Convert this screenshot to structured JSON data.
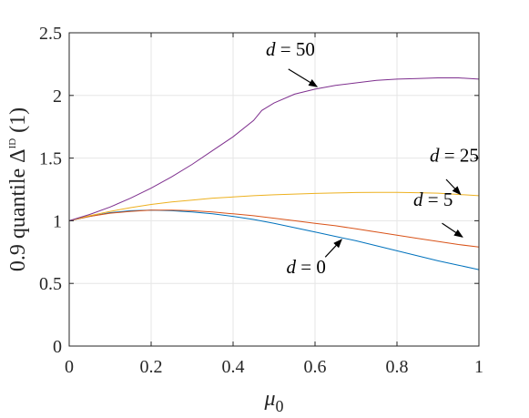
{
  "chart_data": {
    "type": "line",
    "xlabel": {
      "main": "μ",
      "sub": "0"
    },
    "ylabel": {
      "pre": "0.9 quantile ",
      "sym": "Δ",
      "sup": "ID",
      "post": " (1)"
    },
    "xlim": [
      0,
      1
    ],
    "ylim": [
      0,
      2.5
    ],
    "xticks": [
      0,
      0.2,
      0.4,
      0.6,
      0.8,
      1
    ],
    "xtick_labels": [
      "0",
      "0.2",
      "0.4",
      "0.6",
      "0.8",
      "1"
    ],
    "yticks": [
      0,
      0.5,
      1,
      1.5,
      2,
      2.5
    ],
    "ytick_labels": [
      "0",
      "0.5",
      "1",
      "1.5",
      "2",
      "2.5"
    ],
    "grid": true,
    "series": [
      {
        "label": "d = 0",
        "color": "#0072BD",
        "x": [
          0,
          0.05,
          0.1,
          0.15,
          0.2,
          0.25,
          0.3,
          0.35,
          0.4,
          0.45,
          0.5,
          0.55,
          0.6,
          0.65,
          0.7,
          0.75,
          0.8,
          0.85,
          0.9,
          0.95,
          1.0
        ],
        "y": [
          1.0,
          1.035,
          1.065,
          1.08,
          1.085,
          1.08,
          1.07,
          1.055,
          1.035,
          1.01,
          0.98,
          0.945,
          0.91,
          0.875,
          0.84,
          0.8,
          0.76,
          0.72,
          0.68,
          0.645,
          0.61
        ]
      },
      {
        "label": "d = 5",
        "color": "#D95319",
        "x": [
          0,
          0.05,
          0.1,
          0.15,
          0.2,
          0.25,
          0.3,
          0.35,
          0.4,
          0.45,
          0.5,
          0.55,
          0.6,
          0.65,
          0.7,
          0.75,
          0.8,
          0.85,
          0.9,
          0.95,
          1.0
        ],
        "y": [
          1.0,
          1.035,
          1.06,
          1.075,
          1.085,
          1.085,
          1.08,
          1.07,
          1.055,
          1.04,
          1.02,
          1.0,
          0.98,
          0.96,
          0.935,
          0.91,
          0.885,
          0.86,
          0.835,
          0.81,
          0.79
        ]
      },
      {
        "label": "d = 25",
        "color": "#EDB120",
        "x": [
          0,
          0.05,
          0.1,
          0.15,
          0.2,
          0.25,
          0.3,
          0.35,
          0.4,
          0.45,
          0.5,
          0.55,
          0.6,
          0.65,
          0.7,
          0.75,
          0.8,
          0.85,
          0.9,
          0.95,
          1.0
        ],
        "y": [
          1.0,
          1.04,
          1.075,
          1.105,
          1.13,
          1.15,
          1.165,
          1.18,
          1.19,
          1.2,
          1.207,
          1.213,
          1.218,
          1.222,
          1.225,
          1.226,
          1.226,
          1.224,
          1.22,
          1.21,
          1.2
        ]
      },
      {
        "label": "d = 50",
        "color": "#7E2F8E",
        "x": [
          0,
          0.05,
          0.1,
          0.15,
          0.2,
          0.25,
          0.3,
          0.35,
          0.4,
          0.45,
          0.47,
          0.48,
          0.5,
          0.55,
          0.6,
          0.65,
          0.7,
          0.75,
          0.8,
          0.85,
          0.9,
          0.95,
          1.0
        ],
        "y": [
          1.0,
          1.05,
          1.11,
          1.18,
          1.26,
          1.35,
          1.45,
          1.56,
          1.67,
          1.8,
          1.88,
          1.9,
          1.94,
          2.01,
          2.05,
          2.08,
          2.1,
          2.12,
          2.13,
          2.135,
          2.14,
          2.14,
          2.13
        ]
      }
    ],
    "annotations": [
      {
        "series": 3,
        "text": "d = 50",
        "text_at": [
          0.48,
          2.32
        ],
        "arrow_from": [
          0.535,
          2.21
        ],
        "arrow_to": [
          0.605,
          2.07
        ]
      },
      {
        "series": 2,
        "text": "d = 25",
        "text_at": [
          0.88,
          1.47
        ],
        "arrow_from": [
          0.92,
          1.33
        ],
        "arrow_to": [
          0.955,
          1.21
        ]
      },
      {
        "series": 1,
        "text": "d = 5",
        "text_at": [
          0.84,
          1.12
        ],
        "arrow_from": [
          0.91,
          0.98
        ],
        "arrow_to": [
          0.96,
          0.87
        ]
      },
      {
        "series": 0,
        "text": "d = 0",
        "text_at": [
          0.53,
          0.58
        ],
        "arrow_from": [
          0.625,
          0.71
        ],
        "arrow_to": [
          0.665,
          0.85
        ]
      }
    ]
  }
}
